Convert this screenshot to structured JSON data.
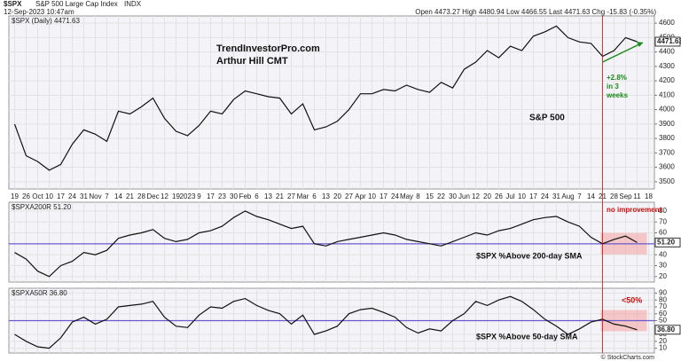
{
  "header": {
    "symbol": "$SPX",
    "name": "S&P 500 Large Cap Index",
    "exchange": "INDX",
    "datetime": "12-Sep-2023 10:47am",
    "quote": "Open 4473.27  High 4480.94  Low 4466.55  Last 4471.63  Chg -15.83 (-0.35%)",
    "watermark": "© StockCharts.com"
  },
  "chart_data": [
    {
      "type": "line",
      "label": "$SPX (Daily) 4471.63",
      "last_label": "4471.63",
      "color": "#111111",
      "categories": [
        "19",
        "26",
        "Oct",
        "10",
        "17",
        "24",
        "31",
        "Nov",
        "7",
        "14",
        "21",
        "28",
        "Dec",
        "12",
        "19",
        "2023",
        "9",
        "17",
        "23",
        "30",
        "Feb",
        "6",
        "13",
        "21",
        "27",
        "Mar",
        "6",
        "13",
        "20",
        "27",
        "Apr",
        "10",
        "17",
        "24",
        "May",
        "8",
        "15",
        "22",
        "30",
        "Jun",
        "12",
        "20",
        "26",
        "Jul",
        "10",
        "17",
        "24",
        "31",
        "Aug",
        "7",
        "14",
        "21",
        "28",
        "Sep",
        "11",
        "18"
      ],
      "values": [
        3900,
        3680,
        3640,
        3580,
        3620,
        3760,
        3860,
        3830,
        3780,
        3990,
        3970,
        4020,
        4080,
        3940,
        3850,
        3820,
        3890,
        3990,
        3970,
        4070,
        4130,
        4110,
        4090,
        4080,
        3970,
        4040,
        3860,
        3880,
        3920,
        4000,
        4110,
        4110,
        4140,
        4130,
        4170,
        4140,
        4120,
        4190,
        4150,
        4280,
        4330,
        4410,
        4360,
        4440,
        4410,
        4510,
        4540,
        4580,
        4500,
        4470,
        4460,
        4370,
        4410,
        4500,
        4471.63,
        null
      ],
      "ylim": [
        3450,
        4650
      ],
      "yticks": [
        3500,
        3600,
        3700,
        3800,
        3900,
        4000,
        4100,
        4200,
        4300,
        4400,
        4500,
        4600
      ],
      "grid": true,
      "annotations": [
        "TrendInvestorPro.com",
        "Arthur Hill CMT",
        "+2.8%",
        "in 3",
        "weeks",
        "S&P 500"
      ]
    },
    {
      "type": "line",
      "label": "$SPXA200R 51.20",
      "last_label": "51.20",
      "color": "#111111",
      "ref_line": 50,
      "ref_color": "#6a5acd",
      "values": [
        42,
        36,
        25,
        20,
        30,
        34,
        42,
        40,
        44,
        55,
        58,
        60,
        63,
        55,
        52,
        54,
        60,
        62,
        66,
        74,
        80,
        75,
        72,
        68,
        64,
        66,
        50,
        48,
        52,
        54,
        56,
        58,
        60,
        58,
        54,
        52,
        50,
        48,
        52,
        56,
        60,
        58,
        62,
        64,
        68,
        72,
        74,
        75,
        70,
        66,
        56,
        50,
        54,
        57,
        51.2,
        null
      ],
      "ylim": [
        15,
        88
      ],
      "yticks": [
        20,
        30,
        40,
        60,
        70,
        80
      ],
      "grid": true,
      "annotations": [
        "no improvement",
        "$SPX %Above 200-day SMA"
      ]
    },
    {
      "type": "line",
      "label": "$SPXA50R 36.80",
      "last_label": "36.80",
      "color": "#111111",
      "ref_line": 50,
      "ref_color": "#6a5acd",
      "values": [
        30,
        20,
        12,
        10,
        25,
        48,
        55,
        45,
        52,
        70,
        72,
        74,
        78,
        55,
        42,
        40,
        58,
        70,
        68,
        78,
        82,
        72,
        65,
        60,
        45,
        58,
        30,
        35,
        42,
        60,
        66,
        68,
        62,
        55,
        40,
        32,
        38,
        35,
        50,
        60,
        78,
        72,
        80,
        85,
        78,
        66,
        52,
        42,
        30,
        38,
        48,
        52,
        45,
        42,
        36.8,
        null
      ],
      "ylim": [
        3,
        97
      ],
      "yticks": [
        10,
        20,
        30,
        50,
        60,
        70,
        80,
        90
      ],
      "grid": true,
      "annotations": [
        "<50%",
        "$SPX %Above 50-day SMA"
      ]
    }
  ]
}
